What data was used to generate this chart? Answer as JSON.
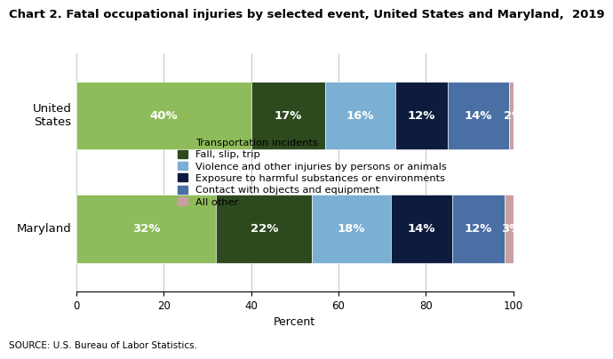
{
  "title": "Chart 2. Fatal occupational injuries by selected event, United States and Maryland,  2019",
  "categories": [
    "United\nStates",
    "Maryland"
  ],
  "segments": [
    {
      "label": "Transportation incidents",
      "color": "#8fbc5a",
      "values": [
        40,
        32
      ]
    },
    {
      "label": "Fall, slip, trip",
      "color": "#2d4a1e",
      "values": [
        17,
        22
      ]
    },
    {
      "label": "Violence and other injuries by persons or animals",
      "color": "#7bafd4",
      "values": [
        16,
        18
      ]
    },
    {
      "label": "Exposure to harmful substances or environments",
      "color": "#0d1b3e",
      "values": [
        12,
        14
      ]
    },
    {
      "label": "Contact with objects and equipment",
      "color": "#4a6fa5",
      "values": [
        14,
        12
      ]
    },
    {
      "label": "All other",
      "color": "#c9a0a0",
      "values": [
        2,
        3
      ]
    }
  ],
  "xlabel": "Percent",
  "xlim": [
    0,
    100
  ],
  "xticks": [
    0,
    20,
    40,
    60,
    80,
    100
  ],
  "source": "SOURCE: U.S. Bureau of Labor Statistics.",
  "bar_height": 0.6,
  "text_color": "#ffffff",
  "text_fontsize": 9.5,
  "title_fontsize": 9.5,
  "legend_fontsize": 8.2,
  "source_fontsize": 7.5,
  "ytick_fontsize": 9.5
}
